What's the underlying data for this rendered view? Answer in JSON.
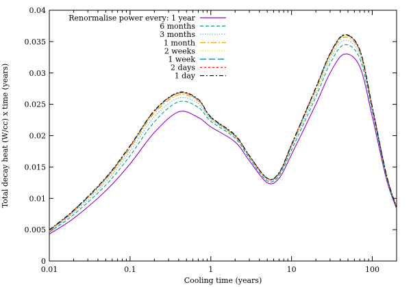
{
  "chart_data": {
    "type": "line",
    "xlabel": "Cooling time (years)",
    "ylabel": "Total decay heat (W/cc) x time (years)",
    "x_scale": "log",
    "xlim": [
      0.01,
      200
    ],
    "ylim": [
      0,
      0.04
    ],
    "x_ticks": [
      0.01,
      0.1,
      1,
      10,
      100
    ],
    "x_tick_labels": [
      "0.01",
      "0.1",
      "1",
      "10",
      "100"
    ],
    "y_ticks": [
      0,
      0.005,
      0.01,
      0.015,
      0.02,
      0.025,
      0.03,
      0.035,
      0.04
    ],
    "y_tick_labels": [
      "0",
      "0.005",
      "0.01",
      "0.015",
      "0.02",
      "0.025",
      "0.03",
      "0.035",
      "0.04"
    ],
    "grid": false,
    "legend_title": "Renormalise power every:",
    "legend_placement": "top-left",
    "x": [
      0.01,
      0.02,
      0.05,
      0.1,
      0.2,
      0.4,
      0.7,
      1,
      2,
      3,
      5,
      7,
      10,
      20,
      30,
      45,
      70,
      100,
      150,
      200
    ],
    "series": [
      {
        "name": "1 year",
        "color": "#9400d3",
        "dash": "",
        "values": [
          0.0043,
          0.0068,
          0.0112,
          0.0155,
          0.0205,
          0.0238,
          0.0229,
          0.0214,
          0.019,
          0.016,
          0.0125,
          0.0132,
          0.017,
          0.025,
          0.03,
          0.033,
          0.031,
          0.023,
          0.013,
          0.0083
        ]
      },
      {
        "name": "6 months",
        "color": "#009e73",
        "dash": "5,3",
        "values": [
          0.0046,
          0.0074,
          0.0121,
          0.0168,
          0.0222,
          0.0254,
          0.0245,
          0.0223,
          0.0196,
          0.0164,
          0.0128,
          0.0136,
          0.0177,
          0.0262,
          0.0315,
          0.0345,
          0.0323,
          0.0238,
          0.0133,
          0.0084
        ]
      },
      {
        "name": "3 months",
        "color": "#56b4e9",
        "dash": "1.5,2",
        "values": [
          0.0047,
          0.0077,
          0.0126,
          0.0175,
          0.023,
          0.026,
          0.0251,
          0.0226,
          0.0198,
          0.0166,
          0.013,
          0.0138,
          0.0181,
          0.0268,
          0.0322,
          0.0352,
          0.0329,
          0.0241,
          0.0135,
          0.0085
        ]
      },
      {
        "name": "1 month",
        "color": "#e69f00",
        "dash": "8,3,2,3",
        "values": [
          0.0048,
          0.0079,
          0.013,
          0.018,
          0.0236,
          0.0265,
          0.0255,
          0.0228,
          0.0199,
          0.0167,
          0.0131,
          0.0139,
          0.0184,
          0.0273,
          0.0327,
          0.0357,
          0.0333,
          0.0243,
          0.0136,
          0.0085
        ]
      },
      {
        "name": "2 weeks",
        "color": "#f0e442",
        "dash": "1.5,2",
        "values": [
          0.0049,
          0.008,
          0.0131,
          0.0182,
          0.0238,
          0.0267,
          0.0256,
          0.0229,
          0.02,
          0.0167,
          0.0131,
          0.014,
          0.0185,
          0.0275,
          0.0329,
          0.0359,
          0.0335,
          0.0244,
          0.0136,
          0.0085
        ]
      },
      {
        "name": "1 week",
        "color": "#0072b2",
        "dash": "9,4",
        "values": [
          0.0049,
          0.008,
          0.0132,
          0.0183,
          0.0239,
          0.0268,
          0.0257,
          0.0229,
          0.02,
          0.0168,
          0.0132,
          0.014,
          0.0185,
          0.0276,
          0.033,
          0.036,
          0.0336,
          0.0245,
          0.0137,
          0.0085
        ]
      },
      {
        "name": "2 days",
        "color": "#e51e10",
        "dash": "3,3",
        "values": [
          0.0049,
          0.0081,
          0.0132,
          0.0183,
          0.024,
          0.0268,
          0.0257,
          0.023,
          0.02,
          0.0168,
          0.0132,
          0.014,
          0.0186,
          0.0276,
          0.0331,
          0.0361,
          0.0336,
          0.0245,
          0.0137,
          0.0085
        ]
      },
      {
        "name": "1 day",
        "color": "#000000",
        "dash": "6,3,2,3",
        "values": [
          0.005,
          0.0081,
          0.0133,
          0.0184,
          0.024,
          0.0269,
          0.0258,
          0.023,
          0.0201,
          0.0168,
          0.0132,
          0.0141,
          0.0186,
          0.0277,
          0.0331,
          0.0361,
          0.0337,
          0.0246,
          0.0137,
          0.0086
        ]
      }
    ]
  }
}
